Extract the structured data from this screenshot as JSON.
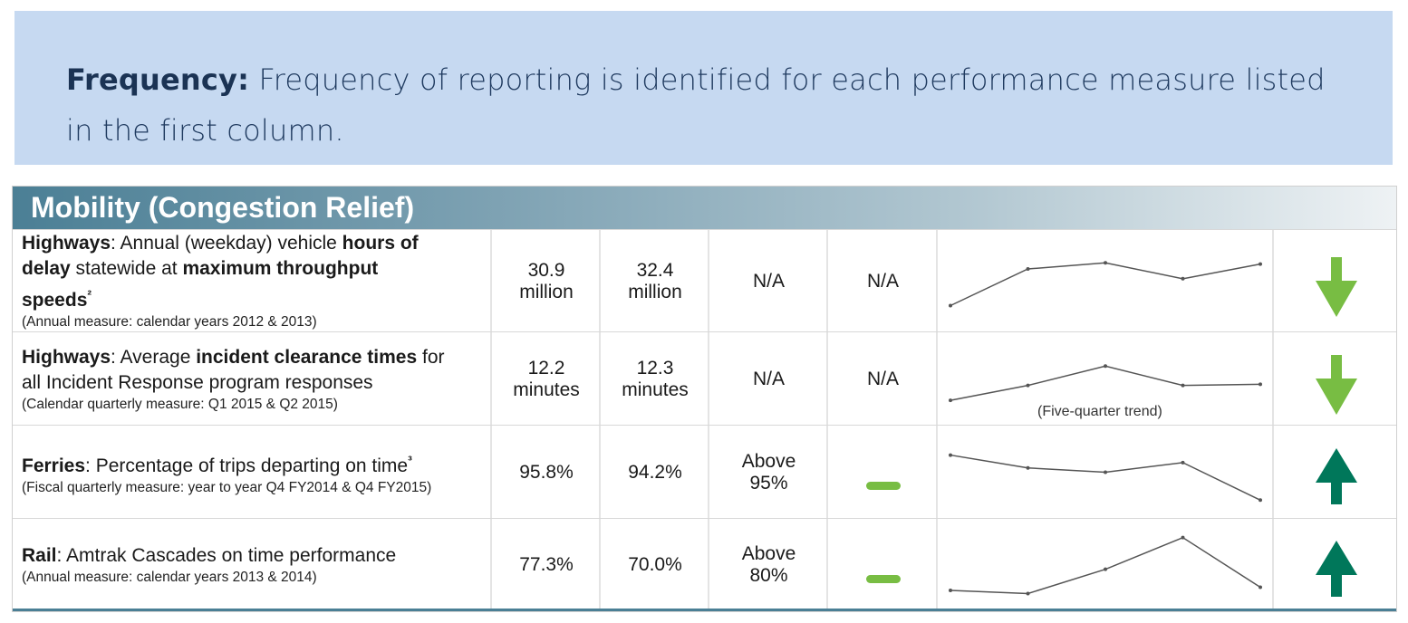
{
  "callout": {
    "label": "Frequency:",
    "text": " Frequency of reporting is identified for each performance measure listed in the first column."
  },
  "table": {
    "title": "Mobility (Congestion Relief)",
    "trend_label": "(Five-quarter trend)",
    "colors": {
      "down_arrow": "#78bd43",
      "up_arrow": "#00775a",
      "dash": "#78bd43",
      "spark": "#555555"
    },
    "rows": [
      {
        "mode": "Highways",
        "desc_parts": [
          ": Annual (weekday) vehicle ",
          "hours of delay",
          " statewide at ",
          "maximum throughput speeds",
          "²"
        ],
        "note": "(Annual measure: calendar years 2012 & 2013)",
        "value1": "30.9 million",
        "value2": "32.4 million",
        "goal": "N/A",
        "goal_met": "N/A",
        "trend": [
          1.0,
          4.0,
          4.5,
          3.2,
          4.4
        ],
        "direction": "down-arrow-icon"
      },
      {
        "mode": "Highways",
        "desc_parts": [
          ": Average ",
          "incident clearance times",
          " for all Incident Response program responses"
        ],
        "note": "(Calendar quarterly measure: Q1 2015 & Q2 2015)",
        "value1": "12.2 minutes",
        "value2": "12.3 minutes",
        "goal": "N/A",
        "goal_met": "N/A",
        "trend": [
          1.0,
          2.4,
          4.2,
          2.4,
          2.5
        ],
        "direction": "down-arrow-icon"
      },
      {
        "mode": "Ferries",
        "desc_parts": [
          ": Percentage of trips departing on time",
          "³"
        ],
        "note": "(Fiscal quarterly measure: year to year Q4 FY2014 & Q4 FY2015)",
        "value1": "95.8%",
        "value2": "94.2%",
        "goal": "Above 95%",
        "goal_met": "dash-icon",
        "trend": [
          4.6,
          3.4,
          3.0,
          3.9,
          0.4
        ],
        "direction": "up-arrow-icon"
      },
      {
        "mode": "Rail",
        "desc_parts": [
          ": Amtrak Cascades on time performance"
        ],
        "note": "(Annual measure: calendar years 2013 & 2014)",
        "value1": "77.3%",
        "value2": "70.0%",
        "goal": "Above 80%",
        "goal_met": "dash-icon",
        "trend": [
          0.6,
          0.3,
          2.6,
          5.6,
          0.9
        ],
        "direction": "up-arrow-icon"
      }
    ]
  }
}
